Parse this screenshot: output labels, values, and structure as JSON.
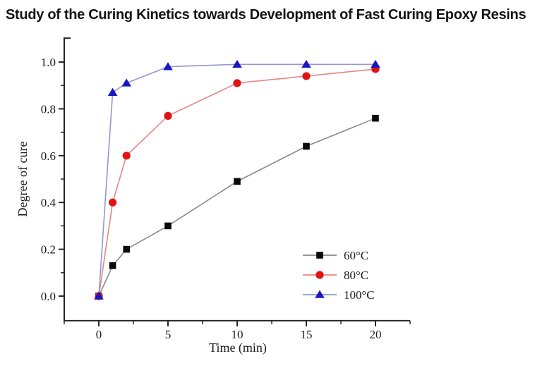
{
  "page": {
    "background_color": "#ffffff",
    "axis_color": "#262626",
    "tick_label_color": "#1a1a1a"
  },
  "chart_data": {
    "type": "line",
    "title": "Study of the Curing Kinetics towards Development of Fast Curing Epoxy Resins",
    "xlabel": "Time (min)",
    "ylabel": "Degree of cure",
    "xlim": [
      -2.5,
      22.5
    ],
    "ylim": [
      -0.105,
      1.105
    ],
    "x_ticks": [
      0,
      5,
      10,
      15,
      20
    ],
    "x_tick_labels": [
      "0",
      "5",
      "10",
      "15",
      "20"
    ],
    "x_minor_ticks": [
      -2.5,
      2.5,
      7.5,
      12.5,
      17.5,
      22.5
    ],
    "y_ticks": [
      0.0,
      0.2,
      0.4,
      0.6,
      0.8,
      1.0
    ],
    "y_tick_labels": [
      "0.0",
      "0.2",
      "0.4",
      "0.6",
      "0.8",
      "1.0"
    ],
    "y_minor_ticks": [
      0.1,
      0.3,
      0.5,
      0.7,
      0.9
    ],
    "grid": false,
    "legend_position": "inside-bottom-right",
    "x": [
      0,
      1,
      2,
      5,
      10,
      15,
      20
    ],
    "series": [
      {
        "name": "60°C",
        "marker": "square",
        "marker_color": "#0a0a0a",
        "line_color": "#8a8a8a",
        "values": [
          0.0,
          0.13,
          0.2,
          0.3,
          0.49,
          0.64,
          0.76
        ]
      },
      {
        "name": "80°C",
        "marker": "circle",
        "marker_color": "#e01313",
        "line_color": "#e58585",
        "values": [
          0.0,
          0.4,
          0.6,
          0.77,
          0.91,
          0.94,
          0.97
        ]
      },
      {
        "name": "100°C",
        "marker": "triangle",
        "marker_color": "#1818c0",
        "line_color": "#9595d5",
        "values": [
          0.0,
          0.87,
          0.91,
          0.98,
          0.99,
          0.99,
          0.99
        ]
      }
    ]
  }
}
